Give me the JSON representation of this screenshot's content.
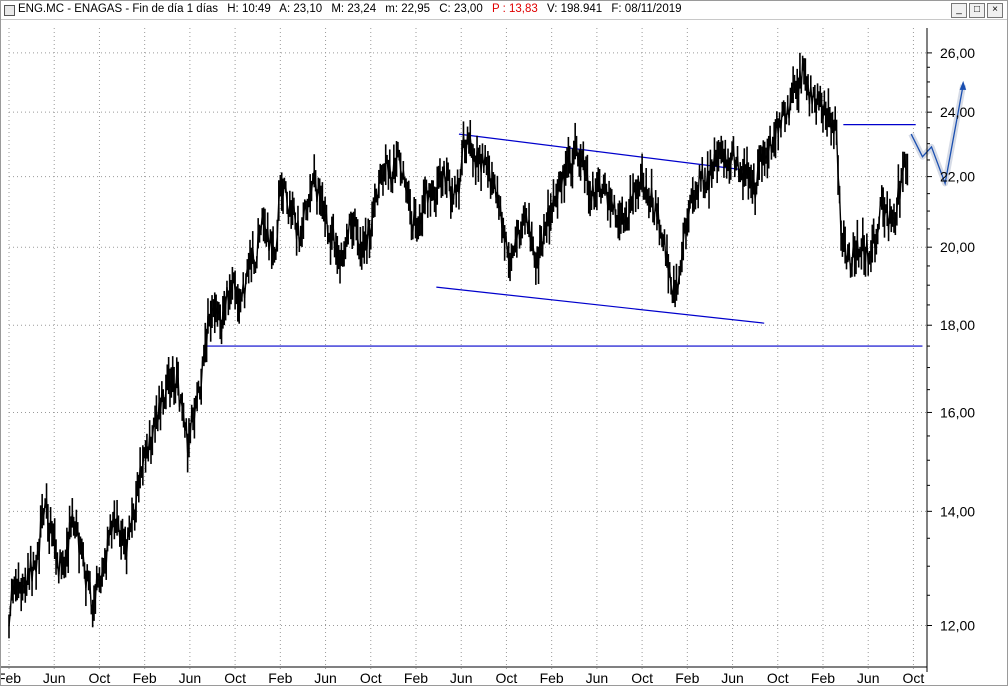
{
  "window": {
    "icon": "chart-window-icon",
    "title_parts": {
      "symbol": "ENG.MC - ENAGAS - Fin de día 1 días",
      "high": "H: 10:49",
      "a": "A: 23,10",
      "max": "M: 23,24",
      "min": "m: 22,95",
      "close": "C: 23,00",
      "p": "P : 13,83",
      "volume": "V: 198.941",
      "date": "F: 08/11/2019"
    },
    "controls": [
      "minimize-icon",
      "maximize-icon",
      "close-icon"
    ],
    "accent_colors": {
      "price": "#000000",
      "trendlines": "#0000cc",
      "projection": "#1a4fb0",
      "p_value": "#e00000",
      "grid": "#9a9a9a"
    }
  },
  "chart_data": {
    "type": "line",
    "title": "ENG.MC - ENAGAS",
    "y_scale": "log",
    "ylim": [
      11.3,
      26.6
    ],
    "y_ticks": [
      "12,00",
      "14,00",
      "16,00",
      "18,00",
      "20,00",
      "22,00",
      "24,00",
      "26,00"
    ],
    "y_tick_values": [
      12,
      14,
      16,
      18,
      20,
      22,
      24,
      26
    ],
    "x_tick_labels": [
      "Feb",
      "Jun",
      "Oct",
      "Feb",
      "Jun",
      "Oct",
      "Feb",
      "Jun",
      "Oct",
      "Feb",
      "Jun",
      "Oct",
      "Feb",
      "Jun",
      "Oct",
      "Feb",
      "Jun",
      "Oct",
      "Feb",
      "Jun",
      "Oct"
    ],
    "x_range": [
      0,
      20.3
    ],
    "grid": true,
    "legend": "none",
    "series": [
      {
        "style": "bar",
        "points": [
          [
            0.0,
            12.2
          ],
          [
            0.15,
            12.8
          ],
          [
            0.3,
            12.6
          ],
          [
            0.45,
            13.0
          ],
          [
            0.6,
            12.8
          ],
          [
            0.7,
            13.6
          ],
          [
            0.8,
            14.1
          ],
          [
            0.95,
            13.5
          ],
          [
            1.1,
            13.0
          ],
          [
            1.25,
            13.2
          ],
          [
            1.4,
            13.8
          ],
          [
            1.55,
            13.4
          ],
          [
            1.7,
            12.8
          ],
          [
            1.85,
            12.4
          ],
          [
            2.0,
            12.7
          ],
          [
            2.15,
            13.2
          ],
          [
            2.3,
            13.9
          ],
          [
            2.45,
            13.6
          ],
          [
            2.6,
            13.4
          ],
          [
            2.75,
            13.8
          ],
          [
            2.9,
            14.8
          ],
          [
            3.05,
            15.1
          ],
          [
            3.2,
            15.6
          ],
          [
            3.35,
            16.2
          ],
          [
            3.5,
            16.5
          ],
          [
            3.65,
            16.8
          ],
          [
            3.8,
            16.3
          ],
          [
            3.95,
            15.4
          ],
          [
            4.1,
            16.0
          ],
          [
            4.25,
            16.8
          ],
          [
            4.4,
            18.0
          ],
          [
            4.55,
            18.4
          ],
          [
            4.7,
            18.1
          ],
          [
            4.85,
            18.8
          ],
          [
            5.0,
            19.0
          ],
          [
            5.15,
            18.6
          ],
          [
            5.3,
            19.5
          ],
          [
            5.45,
            19.8
          ],
          [
            5.6,
            20.5
          ],
          [
            5.75,
            20.2
          ],
          [
            5.9,
            19.6
          ],
          [
            6.0,
            21.9
          ],
          [
            6.15,
            21.2
          ],
          [
            6.3,
            20.8
          ],
          [
            6.45,
            20.2
          ],
          [
            6.6,
            21.3
          ],
          [
            6.75,
            21.9
          ],
          [
            6.9,
            21.1
          ],
          [
            7.05,
            20.5
          ],
          [
            7.2,
            20.2
          ],
          [
            7.35,
            19.5
          ],
          [
            7.5,
            20.5
          ],
          [
            7.65,
            20.8
          ],
          [
            7.8,
            19.8
          ],
          [
            8.0,
            20.5
          ],
          [
            8.15,
            21.5
          ],
          [
            8.3,
            22.3
          ],
          [
            8.45,
            22.0
          ],
          [
            8.6,
            22.5
          ],
          [
            8.75,
            21.7
          ],
          [
            8.9,
            20.8
          ],
          [
            9.05,
            20.4
          ],
          [
            9.2,
            21.5
          ],
          [
            9.35,
            21.3
          ],
          [
            9.5,
            21.8
          ],
          [
            9.65,
            22.0
          ],
          [
            9.8,
            21.5
          ],
          [
            9.95,
            21.8
          ],
          [
            10.05,
            23.1
          ],
          [
            10.2,
            22.9
          ],
          [
            10.35,
            22.4
          ],
          [
            10.5,
            22.6
          ],
          [
            10.65,
            22.0
          ],
          [
            10.8,
            21.5
          ],
          [
            10.9,
            20.8
          ],
          [
            11.05,
            19.5
          ],
          [
            11.2,
            20.0
          ],
          [
            11.35,
            20.9
          ],
          [
            11.5,
            20.5
          ],
          [
            11.65,
            19.6
          ],
          [
            11.8,
            20.2
          ],
          [
            11.95,
            20.9
          ],
          [
            12.1,
            21.4
          ],
          [
            12.25,
            22.0
          ],
          [
            12.4,
            22.3
          ],
          [
            12.55,
            22.8
          ],
          [
            12.7,
            22.4
          ],
          [
            12.85,
            21.2
          ],
          [
            13.0,
            21.8
          ],
          [
            13.15,
            21.6
          ],
          [
            13.3,
            21.2
          ],
          [
            13.5,
            21.0
          ],
          [
            13.65,
            20.8
          ],
          [
            13.8,
            21.6
          ],
          [
            14.0,
            22.0
          ],
          [
            14.15,
            21.5
          ],
          [
            14.3,
            21.0
          ],
          [
            14.55,
            19.8
          ],
          [
            14.7,
            18.8
          ],
          [
            14.85,
            19.4
          ],
          [
            15.0,
            20.8
          ],
          [
            15.15,
            21.5
          ],
          [
            15.3,
            22.0
          ],
          [
            15.45,
            21.9
          ],
          [
            15.6,
            22.4
          ],
          [
            15.75,
            22.9
          ],
          [
            15.9,
            22.5
          ],
          [
            16.05,
            22.6
          ],
          [
            16.2,
            22.3
          ],
          [
            16.35,
            22.1
          ],
          [
            16.5,
            21.6
          ],
          [
            16.65,
            22.5
          ],
          [
            16.8,
            22.9
          ],
          [
            16.95,
            23.3
          ],
          [
            17.1,
            23.8
          ],
          [
            17.25,
            24.2
          ],
          [
            17.4,
            24.7
          ],
          [
            17.55,
            25.3
          ],
          [
            17.7,
            24.6
          ],
          [
            17.85,
            24.3
          ],
          [
            18.0,
            24.1
          ],
          [
            18.15,
            23.8
          ],
          [
            18.3,
            23.4
          ],
          [
            18.4,
            20.5
          ],
          [
            18.55,
            19.6
          ],
          [
            18.7,
            19.8
          ],
          [
            18.85,
            20.1
          ],
          [
            19.0,
            19.8
          ],
          [
            19.15,
            20.3
          ],
          [
            19.3,
            21.1
          ],
          [
            19.45,
            20.7
          ],
          [
            19.6,
            21.0
          ],
          [
            19.7,
            21.6
          ],
          [
            19.8,
            22.3
          ],
          [
            19.9,
            22.5
          ]
        ]
      },
      {
        "name": "",
        "style": "projection",
        "points": [
          [
            19.95,
            23.3
          ],
          [
            20.2,
            22.6
          ],
          [
            20.4,
            22.9
          ],
          [
            20.7,
            21.8
          ],
          [
            21.1,
            24.9
          ]
        ]
      }
    ],
    "trendlines": [
      {
        "points": [
          [
            9.95,
            23.3
          ],
          [
            16.25,
            22.2
          ]
        ]
      },
      {
        "points": [
          [
            9.45,
            18.95
          ],
          [
            16.7,
            18.05
          ]
        ]
      },
      {
        "points": [
          [
            4.35,
            17.5
          ],
          [
            20.2,
            17.5
          ]
        ]
      },
      {
        "points": [
          [
            18.45,
            23.6
          ],
          [
            20.05,
            23.6
          ]
        ]
      }
    ]
  }
}
